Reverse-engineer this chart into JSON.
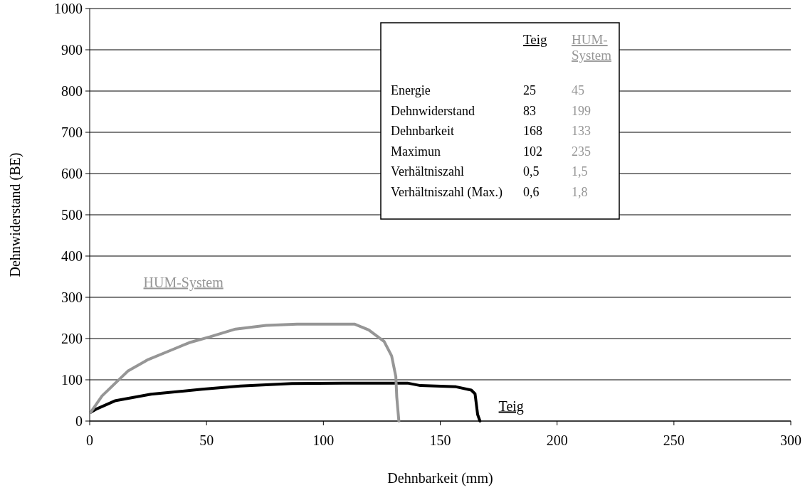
{
  "chart_data": {
    "type": "line",
    "xlabel": "Dehnbarkeit (mm)",
    "ylabel": "Dehnwiderstand (BE)",
    "xlim": [
      0,
      300
    ],
    "xticks": [
      0,
      50,
      100,
      150,
      200,
      250,
      300
    ],
    "ylim": [
      0,
      1000
    ],
    "yticks": [
      0,
      100,
      200,
      300,
      400,
      500,
      600,
      700,
      800,
      900,
      1000
    ],
    "grid": "y",
    "line_style": "solid",
    "series": [
      {
        "name": "Teig",
        "color": "#000000",
        "x": [
          0.4,
          3.2,
          10.8,
          26.2,
          48.1,
          64.5,
          86.5,
          108.4,
          136,
          141.5,
          156.8,
          163.3,
          164.9,
          166,
          167
        ],
        "values": [
          21,
          30,
          49,
          65,
          77,
          85,
          91,
          92,
          92,
          86,
          83,
          75,
          66,
          16,
          0
        ]
      },
      {
        "name": "HUM-System",
        "color": "#969696",
        "x": [
          0.4,
          5.3,
          16.3,
          25,
          34.9,
          42.6,
          51.4,
          62.4,
          75.5,
          88.7,
          113.3,
          119.4,
          126,
          129.2,
          131,
          131.4,
          132.3
        ],
        "values": [
          21,
          61,
          121,
          149,
          172,
          190,
          204,
          223,
          232,
          235,
          235,
          221,
          193,
          158,
          108,
          58,
          0
        ]
      }
    ],
    "annotations": [
      "Teig",
      "HUM-System",
      "Energie",
      "25",
      "45",
      "Dehnwiderstand",
      "83",
      "199",
      "Dehnbarkeit",
      "168",
      "133",
      "Maximun",
      "102",
      "235",
      "Verhältniszahl",
      "0,5",
      "1,5",
      "Verhältniszahl (Max.)",
      "0,6",
      "1,8"
    ]
  }
}
